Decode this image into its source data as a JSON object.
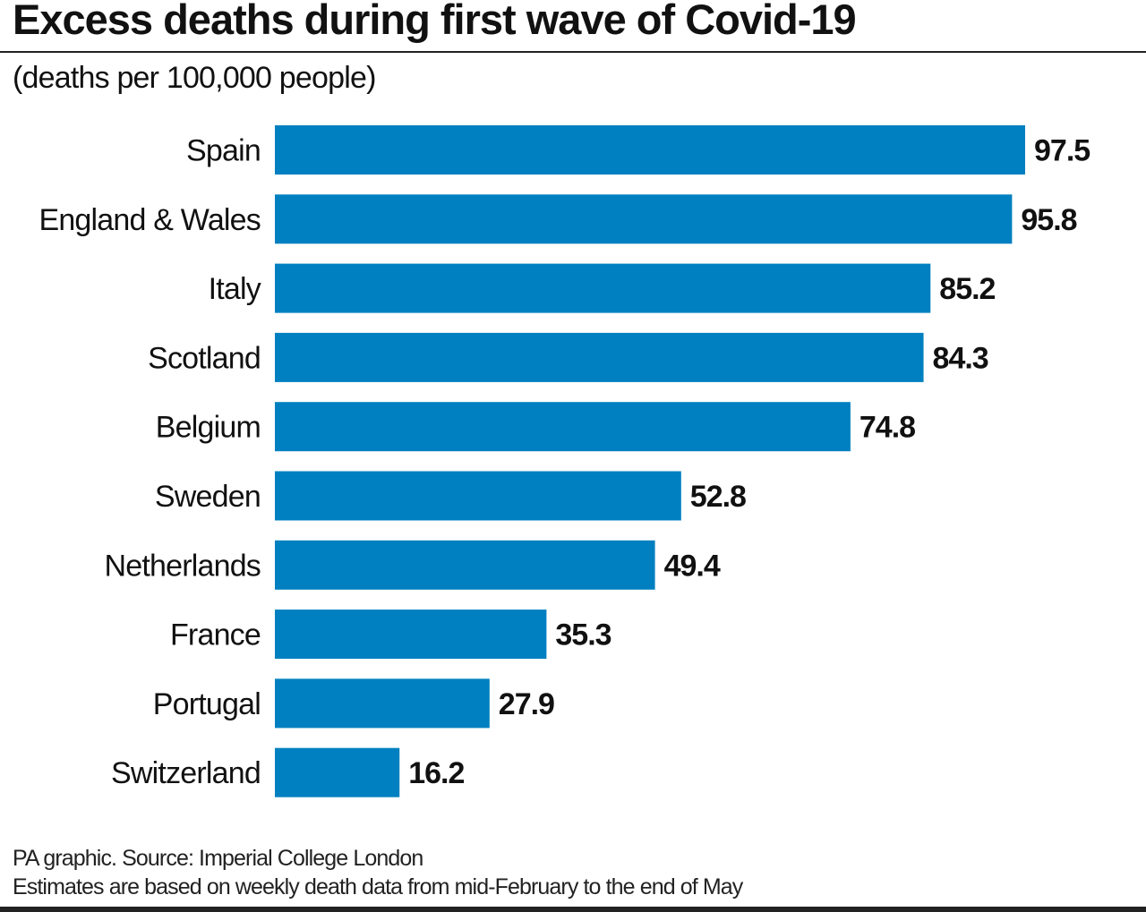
{
  "chart_data": {
    "type": "bar",
    "orientation": "horizontal",
    "title": "Excess deaths during first wave of Covid-19",
    "subtitle": "(deaths per 100,000 people)",
    "categories": [
      "Spain",
      "England & Wales",
      "Italy",
      "Scotland",
      "Belgium",
      "Sweden",
      "Netherlands",
      "France",
      "Portugal",
      "Switzerland"
    ],
    "values": [
      97.5,
      95.8,
      85.2,
      84.3,
      74.8,
      52.8,
      49.4,
      35.3,
      27.9,
      16.2
    ],
    "value_labels": [
      "97.5",
      "95.8",
      "85.2",
      "84.3",
      "74.8",
      "52.8",
      "49.4",
      "35.3",
      "27.9",
      "16.2"
    ],
    "xlim": [
      0,
      100
    ],
    "grid": false,
    "bar_color": "#0080c0"
  },
  "footer": {
    "source": "PA graphic. Source: Imperial College London",
    "note": "Estimates are based on weekly death data from mid-February to the end of May"
  }
}
